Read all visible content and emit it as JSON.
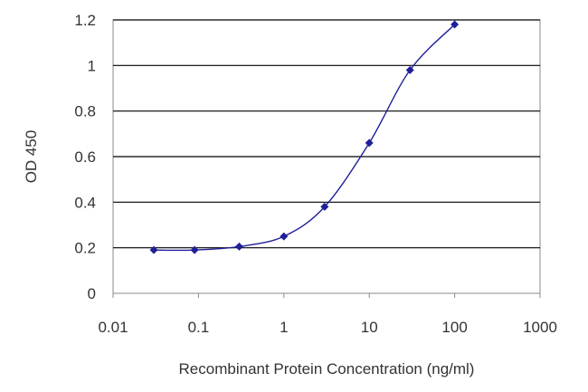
{
  "chart_data": {
    "type": "line",
    "x_scale": "log",
    "xlabel": "Recombinant Protein Concentration (ng/ml)",
    "ylabel": "OD 450",
    "xlim": [
      0.01,
      1000
    ],
    "ylim": [
      0,
      1.2
    ],
    "x_ticks": [
      0.01,
      0.1,
      1,
      10,
      100,
      1000
    ],
    "x_tick_labels": [
      "0.01",
      "0.1",
      "1",
      "10",
      "100",
      "1000"
    ],
    "y_ticks": [
      0,
      0.2,
      0.4,
      0.6,
      0.8,
      1,
      1.2
    ],
    "y_tick_labels": [
      "0",
      "0.2",
      "0.4",
      "0.6",
      "0.8",
      "1",
      "1.2"
    ],
    "grid": "horizontal",
    "colors": {
      "series": "#1f1f99",
      "grid": "#000000",
      "frame": "#888888"
    },
    "series": [
      {
        "x": [
          0.03,
          0.09,
          0.3,
          1,
          3,
          10,
          30,
          100
        ],
        "y": [
          0.19,
          0.19,
          0.205,
          0.25,
          0.38,
          0.66,
          0.98,
          1.18
        ],
        "marker": "diamond"
      }
    ]
  }
}
